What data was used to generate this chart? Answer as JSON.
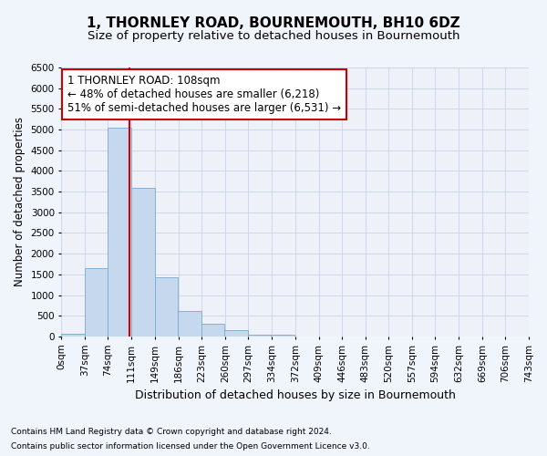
{
  "title": "1, THORNLEY ROAD, BOURNEMOUTH, BH10 6DZ",
  "subtitle": "Size of property relative to detached houses in Bournemouth",
  "xlabel": "Distribution of detached houses by size in Bournemouth",
  "ylabel": "Number of detached properties",
  "bar_color": "#c5d8ee",
  "bar_edge_color": "#7aaacf",
  "grid_color": "#c8d4e8",
  "background_color": "#f0f4fb",
  "axes_background": "#eef2f8",
  "property_line_x": 108,
  "property_line_color": "#cc0000",
  "bin_width": 37,
  "bin_starts": [
    0,
    37,
    74,
    111,
    148,
    185,
    222,
    259,
    296,
    333,
    370,
    407,
    444,
    481,
    518,
    555,
    592,
    629,
    666,
    703
  ],
  "bar_heights": [
    75,
    1650,
    5050,
    3600,
    1420,
    625,
    300,
    150,
    50,
    50,
    0,
    0,
    0,
    0,
    0,
    0,
    0,
    0,
    0,
    0
  ],
  "xlim": [
    0,
    743
  ],
  "ylim": [
    0,
    6500
  ],
  "yticks": [
    0,
    500,
    1000,
    1500,
    2000,
    2500,
    3000,
    3500,
    4000,
    4500,
    5000,
    5500,
    6000,
    6500
  ],
  "xtick_labels": [
    "0sqm",
    "37sqm",
    "74sqm",
    "111sqm",
    "149sqm",
    "186sqm",
    "223sqm",
    "260sqm",
    "297sqm",
    "334sqm",
    "372sqm",
    "409sqm",
    "446sqm",
    "483sqm",
    "520sqm",
    "557sqm",
    "594sqm",
    "632sqm",
    "669sqm",
    "706sqm",
    "743sqm"
  ],
  "xtick_positions": [
    0,
    37,
    74,
    111,
    149,
    186,
    223,
    260,
    297,
    334,
    372,
    409,
    446,
    483,
    520,
    557,
    594,
    632,
    669,
    706,
    743
  ],
  "annotation_line1": "1 THORNLEY ROAD: 108sqm",
  "annotation_line2": "← 48% of detached houses are smaller (6,218)",
  "annotation_line3": "51% of semi-detached houses are larger (6,531) →",
  "annotation_box_color": "#ffffff",
  "annotation_border_color": "#cc0000",
  "footnote1": "Contains HM Land Registry data © Crown copyright and database right 2024.",
  "footnote2": "Contains public sector information licensed under the Open Government Licence v3.0.",
  "title_fontsize": 11,
  "subtitle_fontsize": 9.5,
  "tick_fontsize": 7.5,
  "annotation_fontsize": 8.5,
  "ylabel_fontsize": 8.5,
  "xlabel_fontsize": 9,
  "footnote_fontsize": 6.5
}
